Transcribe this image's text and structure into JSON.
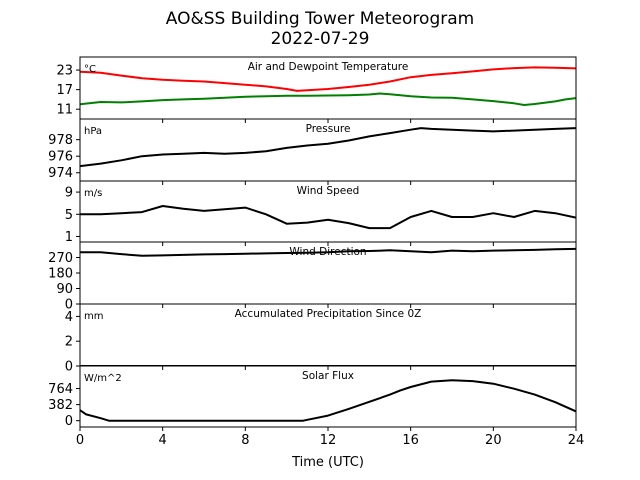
{
  "header": {
    "title_line1": "AO&SS Building Tower Meteorogram",
    "title_line2": "2022-07-29"
  },
  "chart_data": {
    "type": "line",
    "xlabel": "Time (UTC)",
    "xlim": [
      0,
      24
    ],
    "x_ticks": [
      0,
      4,
      8,
      12,
      16,
      20,
      24
    ],
    "grid": false,
    "panels": [
      {
        "title": "Air and Dewpoint Temperature",
        "unit_label": "°C",
        "ylim": [
          8,
          27
        ],
        "y_ticks": [
          11,
          17,
          23
        ],
        "series": [
          {
            "color": "#ff0000",
            "x": [
              0,
              1,
              2,
              3,
              4,
              5,
              6,
              7,
              8,
              9,
              10,
              10.5,
              11,
              12,
              13,
              14,
              15,
              16,
              17,
              18,
              19,
              20,
              21,
              22,
              23,
              24
            ],
            "y": [
              22.5,
              22.2,
              21.3,
              20.5,
              20,
              19.7,
              19.5,
              19,
              18.5,
              18,
              17.2,
              16.6,
              16.8,
              17.2,
              17.8,
              18.5,
              19.5,
              20.8,
              21.5,
              22,
              22.6,
              23.2,
              23.6,
              23.8,
              23.7,
              23.5
            ]
          },
          {
            "color": "#008000",
            "x": [
              0,
              1,
              2,
              3,
              4,
              5,
              6,
              7,
              8,
              9,
              10,
              11,
              12,
              13,
              14,
              14.5,
              15,
              16,
              17,
              18,
              19,
              20,
              21,
              21.5,
              22,
              23,
              23.5,
              24
            ],
            "y": [
              12.5,
              13.2,
              13.1,
              13.4,
              13.8,
              14,
              14.2,
              14.5,
              14.8,
              15,
              15.1,
              15.1,
              15.2,
              15.3,
              15.5,
              15.8,
              15.6,
              15,
              14.6,
              14.5,
              14,
              13.5,
              12.8,
              12.3,
              12.6,
              13.4,
              14,
              14.4
            ]
          }
        ]
      },
      {
        "title": "Pressure",
        "unit_label": "hPa",
        "ylim": [
          973,
          980.5
        ],
        "y_ticks": [
          974,
          976,
          978
        ],
        "series": [
          {
            "color": "#000000",
            "x": [
              0,
              1,
              2,
              3,
              4,
              5,
              6,
              7,
              8,
              9,
              10,
              11,
              12,
              13,
              14,
              15,
              16,
              16.5,
              17,
              18,
              19,
              20,
              21,
              22,
              23,
              24
            ],
            "y": [
              974.8,
              975.1,
              975.5,
              976,
              976.2,
              976.3,
              976.4,
              976.3,
              976.4,
              976.6,
              977,
              977.3,
              977.5,
              977.9,
              978.4,
              978.8,
              979.2,
              979.4,
              979.3,
              979.2,
              979.1,
              979,
              979.1,
              979.2,
              979.3,
              979.4
            ]
          }
        ]
      },
      {
        "title": "Wind Speed",
        "unit_label": "m/s",
        "ylim": [
          0,
          11
        ],
        "y_ticks": [
          1,
          5,
          9
        ],
        "series": [
          {
            "color": "#000000",
            "x": [
              0,
              1,
              2,
              3,
              4,
              5,
              6,
              7,
              8,
              9,
              10,
              11,
              12,
              13,
              14,
              15,
              16,
              17,
              18,
              19,
              20,
              21,
              22,
              23,
              24
            ],
            "y": [
              5,
              5,
              5.2,
              5.4,
              6.5,
              6,
              5.6,
              5.9,
              6.2,
              5,
              3.3,
              3.5,
              4,
              3.4,
              2.5,
              2.5,
              4.5,
              5.6,
              4.5,
              4.5,
              5.2,
              4.5,
              5.6,
              5.2,
              4.4
            ]
          }
        ]
      },
      {
        "title": "Wind Direction",
        "unit_label": "",
        "ylim": [
          0,
          360
        ],
        "y_ticks": [
          0,
          90,
          180,
          270
        ],
        "series": [
          {
            "color": "#000000",
            "x": [
              0,
              1,
              2,
              3,
              4,
              5,
              6,
              7,
              8,
              9,
              10,
              11,
              12,
              13,
              14,
              15,
              16,
              17,
              18,
              19,
              20,
              21,
              22,
              23,
              24
            ],
            "y": [
              300,
              300,
              290,
              280,
              282,
              285,
              288,
              290,
              292,
              294,
              296,
              298,
              300,
              306,
              308,
              312,
              306,
              300,
              310,
              306,
              310,
              312,
              314,
              318,
              320
            ]
          }
        ]
      },
      {
        "title": "Accumulated Precipitation Since 0Z",
        "unit_label": "mm",
        "ylim": [
          0,
          5
        ],
        "y_ticks": [
          0,
          2,
          4
        ],
        "series": [
          {
            "color": "#000000",
            "x": [
              0,
              24
            ],
            "y": [
              0,
              0
            ]
          }
        ]
      },
      {
        "title": "Solar Flux",
        "unit_label": "W/m^2",
        "ylim": [
          -150,
          1300
        ],
        "y_ticks": [
          0,
          382,
          764
        ],
        "series": [
          {
            "color": "#000000",
            "x": [
              0,
              0.3,
              1,
              1.4,
              2,
              4,
              6,
              8,
              10,
              10.8,
              11,
              12,
              13,
              14,
              15,
              15.5,
              16,
              17,
              18,
              19,
              20,
              21,
              22,
              23,
              24
            ],
            "y": [
              250,
              150,
              60,
              0,
              0,
              0,
              0,
              0,
              0,
              0,
              20,
              120,
              280,
              450,
              620,
              720,
              800,
              930,
              960,
              940,
              880,
              760,
              620,
              440,
              220
            ]
          }
        ]
      }
    ]
  }
}
